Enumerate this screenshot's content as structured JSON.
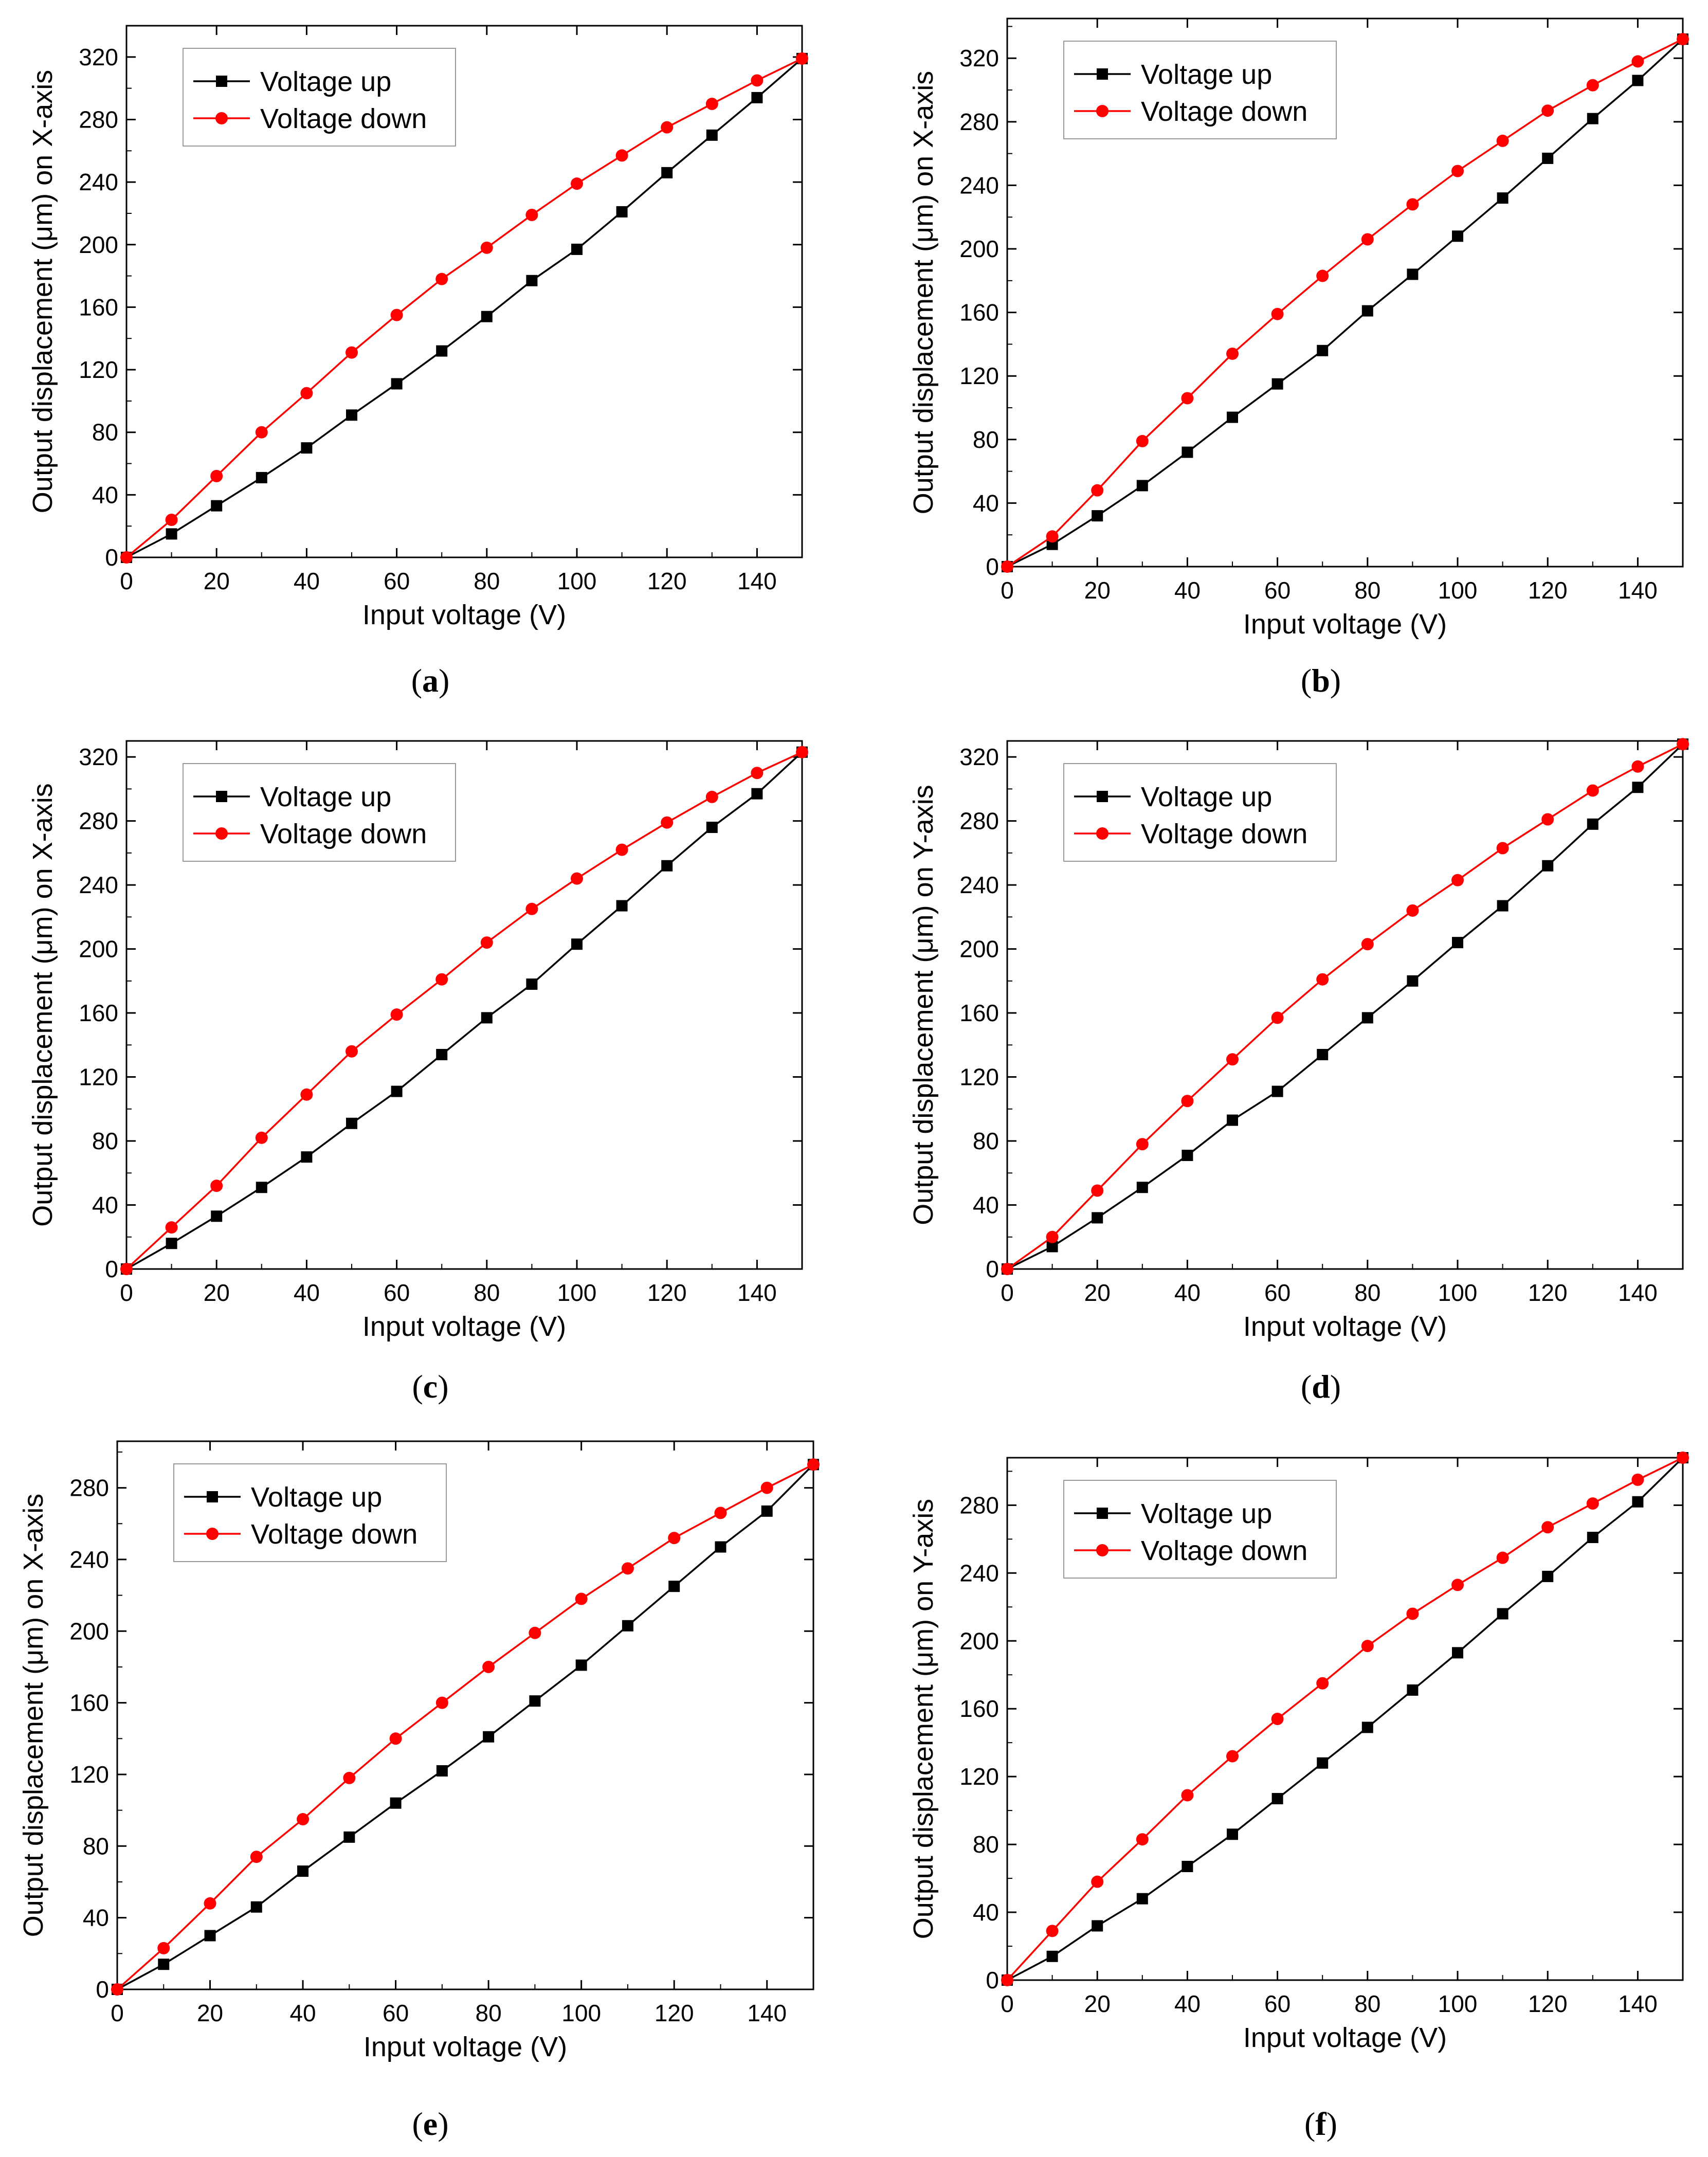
{
  "figure": {
    "panels": [
      {
        "id": "a",
        "caption_letter": "a"
      },
      {
        "id": "b",
        "caption_letter": "b"
      },
      {
        "id": "c",
        "caption_letter": "c"
      },
      {
        "id": "d",
        "caption_letter": "d"
      },
      {
        "id": "e",
        "caption_letter": "e"
      },
      {
        "id": "f",
        "caption_letter": "f"
      }
    ]
  },
  "chart_data": [
    {
      "panel": "a",
      "type": "line",
      "title": "",
      "xlabel": "Input voltage (V)",
      "ylabel": "Output displacement (μm) on X-axis",
      "xlim": [
        0,
        150
      ],
      "ylim": [
        0,
        340
      ],
      "xticks": [
        0,
        20,
        40,
        60,
        80,
        100,
        120,
        140
      ],
      "yticks": [
        0,
        40,
        80,
        120,
        160,
        200,
        240,
        280,
        320
      ],
      "x": [
        0,
        10,
        20,
        30,
        40,
        50,
        60,
        70,
        80,
        90,
        100,
        110,
        120,
        130,
        140,
        150
      ],
      "series": [
        {
          "name": "Voltage up",
          "color": "#000000",
          "marker": "square",
          "values": [
            0,
            15,
            33,
            51,
            70,
            91,
            111,
            132,
            154,
            177,
            197,
            221,
            246,
            270,
            294,
            319
          ]
        },
        {
          "name": "Voltage down",
          "color": "#ff0000",
          "marker": "circle",
          "values": [
            0,
            24,
            52,
            80,
            105,
            131,
            155,
            178,
            198,
            219,
            239,
            257,
            275,
            290,
            305,
            319
          ]
        }
      ],
      "legend": "top-left"
    },
    {
      "panel": "b",
      "type": "line",
      "title": "",
      "xlabel": "Input voltage (V)",
      "ylabel": "Output displacement (μm) on X-axis",
      "xlim": [
        0,
        150
      ],
      "ylim": [
        0,
        345
      ],
      "xticks": [
        0,
        20,
        40,
        60,
        80,
        100,
        120,
        140
      ],
      "yticks": [
        0,
        40,
        80,
        120,
        160,
        200,
        240,
        280,
        320
      ],
      "x": [
        0,
        10,
        20,
        30,
        40,
        50,
        60,
        70,
        80,
        90,
        100,
        110,
        120,
        130,
        140,
        150
      ],
      "series": [
        {
          "name": "Voltage up",
          "color": "#000000",
          "marker": "square",
          "values": [
            0,
            14,
            32,
            51,
            72,
            94,
            115,
            136,
            161,
            184,
            208,
            232,
            257,
            282,
            306,
            332
          ]
        },
        {
          "name": "Voltage down",
          "color": "#ff0000",
          "marker": "circle",
          "values": [
            0,
            19,
            48,
            79,
            106,
            134,
            159,
            183,
            206,
            228,
            249,
            268,
            287,
            303,
            318,
            332
          ]
        }
      ],
      "legend": "top-left"
    },
    {
      "panel": "c",
      "type": "line",
      "title": "",
      "xlabel": "Input voltage (V)",
      "ylabel": "Output displacement (μm) on X-axis",
      "xlim": [
        0,
        150
      ],
      "ylim": [
        0,
        330
      ],
      "xticks": [
        0,
        20,
        40,
        60,
        80,
        100,
        120,
        140
      ],
      "yticks": [
        0,
        40,
        80,
        120,
        160,
        200,
        240,
        280,
        320
      ],
      "x": [
        0,
        10,
        20,
        30,
        40,
        50,
        60,
        70,
        80,
        90,
        100,
        110,
        120,
        130,
        140,
        150
      ],
      "series": [
        {
          "name": "Voltage up",
          "color": "#000000",
          "marker": "square",
          "values": [
            0,
            16,
            33,
            51,
            70,
            91,
            111,
            134,
            157,
            178,
            203,
            227,
            252,
            276,
            297,
            323
          ]
        },
        {
          "name": "Voltage down",
          "color": "#ff0000",
          "marker": "circle",
          "values": [
            0,
            26,
            52,
            82,
            109,
            136,
            159,
            181,
            204,
            225,
            244,
            262,
            279,
            295,
            310,
            323
          ]
        }
      ],
      "legend": "top-left"
    },
    {
      "panel": "d",
      "type": "line",
      "title": "",
      "xlabel": "Input voltage (V)",
      "ylabel": "Output displacement (μm) on Y-axis",
      "xlim": [
        0,
        150
      ],
      "ylim": [
        0,
        330
      ],
      "xticks": [
        0,
        20,
        40,
        60,
        80,
        100,
        120,
        140
      ],
      "yticks": [
        0,
        40,
        80,
        120,
        160,
        200,
        240,
        280,
        320
      ],
      "x": [
        0,
        10,
        20,
        30,
        40,
        50,
        60,
        70,
        80,
        90,
        100,
        110,
        120,
        130,
        140,
        150
      ],
      "series": [
        {
          "name": "Voltage up",
          "color": "#000000",
          "marker": "square",
          "values": [
            0,
            14,
            32,
            51,
            71,
            93,
            111,
            134,
            157,
            180,
            204,
            227,
            252,
            278,
            301,
            328
          ]
        },
        {
          "name": "Voltage down",
          "color": "#ff0000",
          "marker": "circle",
          "values": [
            0,
            20,
            49,
            78,
            105,
            131,
            157,
            181,
            203,
            224,
            243,
            263,
            281,
            299,
            314,
            328
          ]
        }
      ],
      "legend": "top-left"
    },
    {
      "panel": "e",
      "type": "line",
      "title": "",
      "xlabel": "Input voltage (V)",
      "ylabel": "Output displacement (μm) on X-axis",
      "xlim": [
        0,
        150
      ],
      "ylim": [
        0,
        306
      ],
      "xticks": [
        0,
        20,
        40,
        60,
        80,
        100,
        120,
        140
      ],
      "yticks": [
        0,
        40,
        80,
        120,
        160,
        200,
        240,
        280
      ],
      "x": [
        0,
        10,
        20,
        30,
        40,
        50,
        60,
        70,
        80,
        90,
        100,
        110,
        120,
        130,
        140,
        150
      ],
      "series": [
        {
          "name": "Voltage up",
          "color": "#000000",
          "marker": "square",
          "values": [
            0,
            14,
            30,
            46,
            66,
            85,
            104,
            122,
            141,
            161,
            181,
            203,
            225,
            247,
            267,
            293
          ]
        },
        {
          "name": "Voltage down",
          "color": "#ff0000",
          "marker": "circle",
          "values": [
            0,
            23,
            48,
            74,
            95,
            118,
            140,
            160,
            180,
            199,
            218,
            235,
            252,
            266,
            280,
            293
          ]
        }
      ],
      "legend": "top-left"
    },
    {
      "panel": "f",
      "type": "line",
      "title": "",
      "xlabel": "Input voltage (V)",
      "ylabel": "Output displacement (μm) on Y-axis",
      "xlim": [
        0,
        150
      ],
      "ylim": [
        0,
        308
      ],
      "xticks": [
        0,
        20,
        40,
        60,
        80,
        100,
        120,
        140
      ],
      "yticks": [
        0,
        40,
        80,
        120,
        160,
        200,
        240,
        280
      ],
      "x": [
        0,
        10,
        20,
        30,
        40,
        50,
        60,
        70,
        80,
        90,
        100,
        110,
        120,
        130,
        140,
        150
      ],
      "series": [
        {
          "name": "Voltage up",
          "color": "#000000",
          "marker": "square",
          "values": [
            0,
            14,
            32,
            48,
            67,
            86,
            107,
            128,
            149,
            171,
            193,
            216,
            238,
            261,
            282,
            308
          ]
        },
        {
          "name": "Voltage down",
          "color": "#ff0000",
          "marker": "circle",
          "values": [
            0,
            29,
            58,
            83,
            109,
            132,
            154,
            175,
            197,
            216,
            233,
            249,
            267,
            281,
            295,
            308
          ]
        }
      ],
      "legend": "top-left"
    }
  ]
}
